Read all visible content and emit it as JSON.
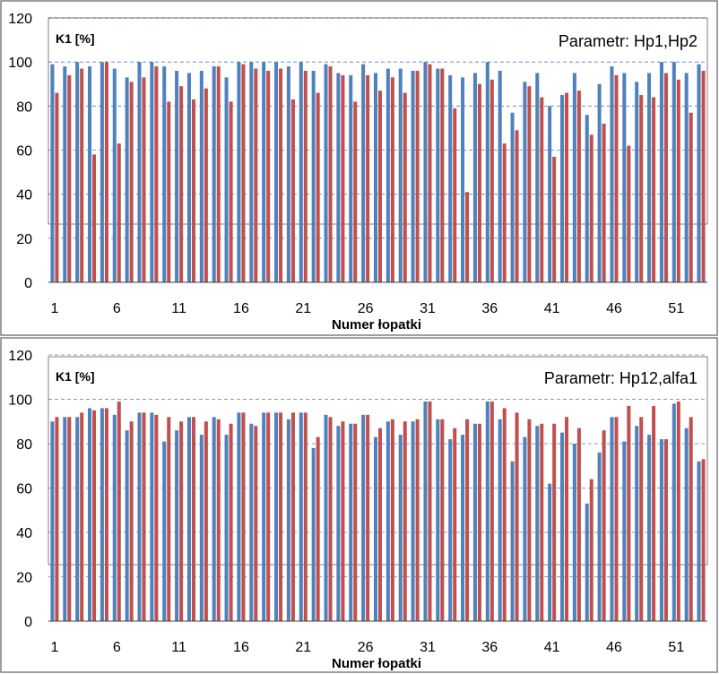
{
  "colors": {
    "series1": "#4F81BD",
    "series2": "#C0504D",
    "grid": "#4F81BD",
    "frame": "#7F7F7F",
    "background": "#FFFFFF"
  },
  "chart_data": [
    {
      "type": "bar",
      "ylabel": "K1 [%]",
      "xlabel": "Numer łopatki",
      "annotation": "Parametr: Hp1,Hp2",
      "ylim": [
        0,
        120
      ],
      "yticks": [
        "0",
        "20",
        "40",
        "60",
        "80",
        "100",
        "120"
      ],
      "xtick_labels": [
        "1",
        "6",
        "11",
        "16",
        "21",
        "26",
        "31",
        "36",
        "41",
        "46",
        "51"
      ],
      "categories": [
        1,
        2,
        3,
        4,
        5,
        6,
        7,
        8,
        9,
        10,
        11,
        12,
        13,
        14,
        15,
        16,
        17,
        18,
        19,
        20,
        21,
        22,
        23,
        24,
        25,
        26,
        27,
        28,
        29,
        30,
        31,
        32,
        33,
        34,
        35,
        36,
        37,
        38,
        39,
        40,
        41,
        42,
        43,
        44,
        45,
        46,
        47,
        48,
        49,
        50,
        51,
        52,
        53
      ],
      "series": [
        {
          "name": "series1",
          "values": [
            99,
            98,
            100,
            98,
            100,
            97,
            93,
            100,
            100,
            98,
            96,
            95,
            96,
            98,
            93,
            100,
            100,
            100,
            100,
            98,
            100,
            96,
            99,
            95,
            94,
            99,
            95,
            97,
            97,
            96,
            100,
            97,
            94,
            93,
            95,
            100,
            96,
            77,
            91,
            95,
            80,
            85,
            95,
            76,
            90,
            98,
            95,
            91,
            95,
            100,
            100,
            95,
            99
          ]
        },
        {
          "name": "series2",
          "values": [
            86,
            94,
            97,
            58,
            100,
            63,
            91,
            93,
            98,
            82,
            89,
            83,
            88,
            98,
            82,
            99,
            97,
            96,
            97,
            83,
            96,
            86,
            98,
            94,
            82,
            94,
            87,
            93,
            86,
            96,
            99,
            97,
            79,
            41,
            90,
            92,
            63,
            69,
            89,
            84,
            57,
            86,
            87,
            67,
            72,
            94,
            62,
            85,
            84,
            95,
            92,
            77,
            96
          ]
        }
      ]
    },
    {
      "type": "bar",
      "ylabel": "K1 [%]",
      "xlabel": "Numer łopatki",
      "annotation": "Parametr: Hp12,alfa1",
      "ylim": [
        0,
        120
      ],
      "yticks": [
        "0",
        "20",
        "40",
        "60",
        "80",
        "100",
        "120"
      ],
      "xtick_labels": [
        "1",
        "6",
        "11",
        "16",
        "21",
        "26",
        "31",
        "36",
        "41",
        "46",
        "51"
      ],
      "categories": [
        1,
        2,
        3,
        4,
        5,
        6,
        7,
        8,
        9,
        10,
        11,
        12,
        13,
        14,
        15,
        16,
        17,
        18,
        19,
        20,
        21,
        22,
        23,
        24,
        25,
        26,
        27,
        28,
        29,
        30,
        31,
        32,
        33,
        34,
        35,
        36,
        37,
        38,
        39,
        40,
        41,
        42,
        43,
        44,
        45,
        46,
        47,
        48,
        49,
        50,
        51,
        52,
        53
      ],
      "series": [
        {
          "name": "series1",
          "values": [
            90,
            92,
            92,
            96,
            96,
            93,
            86,
            94,
            94,
            81,
            86,
            92,
            84,
            92,
            84,
            94,
            89,
            94,
            94,
            91,
            94,
            78,
            93,
            88,
            89,
            93,
            83,
            90,
            84,
            90,
            99,
            91,
            82,
            84,
            89,
            99,
            91,
            72,
            83,
            88,
            62,
            85,
            80,
            53,
            76,
            92,
            81,
            88,
            84,
            82,
            98,
            87,
            72
          ]
        },
        {
          "name": "series2",
          "values": [
            92,
            92,
            94,
            95,
            96,
            99,
            90,
            94,
            93,
            92,
            90,
            92,
            90,
            91,
            89,
            94,
            88,
            94,
            94,
            94,
            94,
            83,
            92,
            90,
            89,
            93,
            87,
            91,
            90,
            91,
            99,
            91,
            87,
            91,
            89,
            99,
            96,
            94,
            91,
            89,
            89,
            92,
            87,
            64,
            86,
            92,
            97,
            92,
            97,
            82,
            99,
            92,
            73
          ]
        }
      ]
    }
  ]
}
